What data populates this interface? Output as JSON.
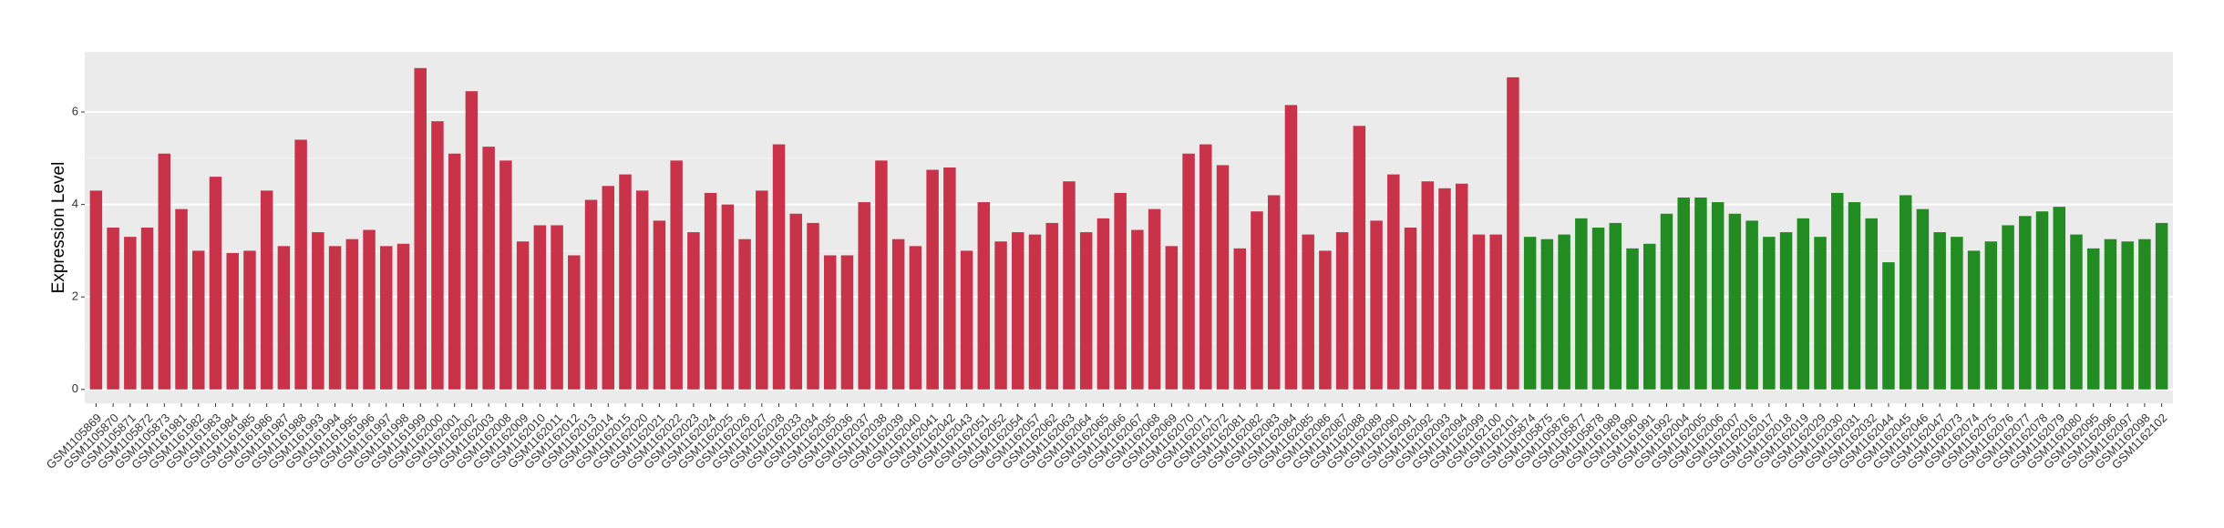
{
  "chart_data": {
    "type": "bar",
    "y_label": "Expression Level",
    "categories": [
      "GSM1105869",
      "GSM1105870",
      "GSM1105871",
      "GSM1105872",
      "GSM1105873",
      "GSM1161981",
      "GSM1161982",
      "GSM1161983",
      "GSM1161984",
      "GSM1161985",
      "GSM1161986",
      "GSM1161987",
      "GSM1161988",
      "GSM1161993",
      "GSM1161994",
      "GSM1161995",
      "GSM1161996",
      "GSM1161997",
      "GSM1161998",
      "GSM1161999",
      "GSM1162000",
      "GSM1162001",
      "GSM1162002",
      "GSM1162003",
      "GSM1162008",
      "GSM1162009",
      "GSM1162010",
      "GSM1162011",
      "GSM1162012",
      "GSM1162013",
      "GSM1162014",
      "GSM1162015",
      "GSM1162020",
      "GSM1162021",
      "GSM1162022",
      "GSM1162023",
      "GSM1162024",
      "GSM1162025",
      "GSM1162026",
      "GSM1162027",
      "GSM1162028",
      "GSM1162033",
      "GSM1162034",
      "GSM1162035",
      "GSM1162036",
      "GSM1162037",
      "GSM1162038",
      "GSM1162039",
      "GSM1162040",
      "GSM1162041",
      "GSM1162042",
      "GSM1162043",
      "GSM1162051",
      "GSM1162052",
      "GSM1162054",
      "GSM1162057",
      "GSM1162062",
      "GSM1162063",
      "GSM1162064",
      "GSM1162065",
      "GSM1162066",
      "GSM1162067",
      "GSM1162068",
      "GSM1162069",
      "GSM1162070",
      "GSM1162071",
      "GSM1162072",
      "GSM1162081",
      "GSM1162082",
      "GSM1162083",
      "GSM1162084",
      "GSM1162085",
      "GSM1162086",
      "GSM1162087",
      "GSM1162088",
      "GSM1162089",
      "GSM1162090",
      "GSM1162091",
      "GSM1162092",
      "GSM1162093",
      "GSM1162094",
      "GSM1162099",
      "GSM1162100",
      "GSM1162101",
      "GSM1105874",
      "GSM1105875",
      "GSM1105876",
      "GSM1105877",
      "GSM1105878",
      "GSM1161989",
      "GSM1161990",
      "GSM1161991",
      "GSM1161992",
      "GSM1162004",
      "GSM1162005",
      "GSM1162006",
      "GSM1162007",
      "GSM1162016",
      "GSM1162017",
      "GSM1162018",
      "GSM1162019",
      "GSM1162029",
      "GSM1162030",
      "GSM1162031",
      "GSM1162032",
      "GSM1162044",
      "GSM1162045",
      "GSM1162046",
      "GSM1162047",
      "GSM1162073",
      "GSM1162074",
      "GSM1162075",
      "GSM1162076",
      "GSM1162077",
      "GSM1162078",
      "GSM1162079",
      "GSM1162080",
      "GSM1162095",
      "GSM1162096",
      "GSM1162097",
      "GSM1162098",
      "GSM1162102"
    ],
    "values": [
      4.3,
      3.5,
      3.3,
      3.5,
      5.1,
      3.9,
      3.0,
      4.6,
      2.95,
      3.0,
      4.3,
      3.1,
      5.4,
      3.4,
      3.1,
      3.25,
      3.45,
      3.1,
      3.15,
      6.95,
      5.8,
      5.1,
      6.45,
      5.25,
      4.95,
      3.2,
      3.55,
      3.55,
      2.9,
      4.1,
      4.4,
      4.65,
      4.3,
      3.65,
      4.95,
      3.4,
      4.25,
      4.0,
      3.25,
      4.3,
      5.3,
      3.8,
      3.6,
      2.9,
      2.9,
      4.05,
      4.95,
      3.25,
      3.1,
      4.75,
      4.8,
      3.0,
      4.05,
      3.2,
      3.4,
      3.35,
      3.6,
      4.5,
      3.4,
      3.7,
      4.25,
      3.45,
      3.9,
      3.1,
      5.1,
      5.3,
      4.85,
      3.05,
      3.85,
      4.2,
      6.15,
      3.35,
      3.0,
      3.4,
      5.7,
      3.65,
      4.65,
      3.5,
      4.5,
      4.35,
      4.45,
      3.35,
      3.35,
      6.75,
      3.3,
      3.25,
      3.35,
      3.7,
      3.5,
      3.6,
      3.05,
      3.15,
      3.8,
      4.15,
      4.15,
      4.05,
      3.8,
      3.65,
      3.3,
      3.4,
      3.7,
      3.3,
      4.25,
      4.05,
      3.7,
      2.75,
      4.2,
      3.9,
      3.4,
      3.3,
      3.0,
      3.2,
      3.55,
      3.75,
      3.85,
      3.95,
      3.35,
      3.05,
      3.25,
      3.2,
      3.25,
      3.6
    ],
    "colors": [
      "#c8334a",
      "#c8334a",
      "#c8334a",
      "#c8334a",
      "#c8334a",
      "#c8334a",
      "#c8334a",
      "#c8334a",
      "#c8334a",
      "#c8334a",
      "#c8334a",
      "#c8334a",
      "#c8334a",
      "#c8334a",
      "#c8334a",
      "#c8334a",
      "#c8334a",
      "#c8334a",
      "#c8334a",
      "#c8334a",
      "#c8334a",
      "#c8334a",
      "#c8334a",
      "#c8334a",
      "#c8334a",
      "#c8334a",
      "#c8334a",
      "#c8334a",
      "#c8334a",
      "#c8334a",
      "#c8334a",
      "#c8334a",
      "#c8334a",
      "#c8334a",
      "#c8334a",
      "#c8334a",
      "#c8334a",
      "#c8334a",
      "#c8334a",
      "#c8334a",
      "#c8334a",
      "#c8334a",
      "#c8334a",
      "#c8334a",
      "#c8334a",
      "#c8334a",
      "#c8334a",
      "#c8334a",
      "#c8334a",
      "#c8334a",
      "#c8334a",
      "#c8334a",
      "#c8334a",
      "#c8334a",
      "#c8334a",
      "#c8334a",
      "#c8334a",
      "#c8334a",
      "#c8334a",
      "#c8334a",
      "#c8334a",
      "#c8334a",
      "#c8334a",
      "#c8334a",
      "#c8334a",
      "#c8334a",
      "#c8334a",
      "#c8334a",
      "#c8334a",
      "#c8334a",
      "#c8334a",
      "#c8334a",
      "#c8334a",
      "#c8334a",
      "#c8334a",
      "#c8334a",
      "#c8334a",
      "#c8334a",
      "#c8334a",
      "#c8334a",
      "#c8334a",
      "#c8334a",
      "#c8334a",
      "#c8334a",
      "#228b22",
      "#228b22",
      "#228b22",
      "#228b22",
      "#228b22",
      "#228b22",
      "#228b22",
      "#228b22",
      "#228b22",
      "#228b22",
      "#228b22",
      "#228b22",
      "#228b22",
      "#228b22",
      "#228b22",
      "#228b22",
      "#228b22",
      "#228b22",
      "#228b22",
      "#228b22",
      "#228b22",
      "#228b22",
      "#228b22",
      "#228b22",
      "#228b22",
      "#228b22",
      "#228b22",
      "#228b22",
      "#228b22",
      "#228b22",
      "#228b22",
      "#228b22",
      "#228b22",
      "#228b22",
      "#228b22",
      "#228b22",
      "#228b22",
      "#228b22"
    ],
    "ylim": [
      -0.3,
      7.3
    ],
    "yticks": [
      0,
      2,
      4,
      6
    ],
    "grid": true
  }
}
